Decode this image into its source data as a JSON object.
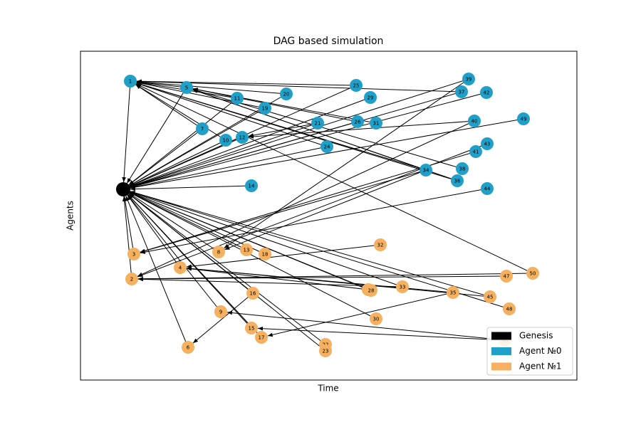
{
  "title": "DAG based simulation",
  "x_label": "Time",
  "y_label": "Agents",
  "legend": [
    {
      "name": "Genesis",
      "color": "#000000"
    },
    {
      "name": "Agent №0",
      "color": "#20a0c8"
    },
    {
      "name": "Agent №1",
      "color": "#f5b060"
    }
  ],
  "nodes": [
    {
      "group": 0
    },
    {
      "label": "1",
      "group": 1
    },
    {
      "label": "2",
      "group": 2
    },
    {
      "label": "3",
      "group": 2
    },
    {
      "label": "4",
      "group": 2
    },
    {
      "label": "5",
      "group": 1
    },
    {
      "label": "6",
      "group": 2
    },
    {
      "label": "7",
      "group": 1
    },
    {
      "label": "8",
      "group": 2
    },
    {
      "label": "9",
      "group": 2
    },
    {
      "label": "10",
      "group": 1
    },
    {
      "label": "11",
      "group": 1
    },
    {
      "label": "12",
      "group": 1
    },
    {
      "label": "13",
      "group": 2
    },
    {
      "label": "14",
      "group": 1
    },
    {
      "label": "15",
      "group": 2
    },
    {
      "label": "16",
      "group": 2
    },
    {
      "label": "17",
      "group": 2
    },
    {
      "label": "18",
      "group": 2
    },
    {
      "label": "19",
      "group": 1
    },
    {
      "label": "20",
      "group": 1
    },
    {
      "label": "21",
      "group": 1
    },
    {
      "label": "22",
      "group": 2
    },
    {
      "label": "23",
      "group": 2
    },
    {
      "label": "24",
      "group": 1
    },
    {
      "label": "25",
      "group": 1
    },
    {
      "label": "26",
      "group": 1
    },
    {
      "label": "27",
      "group": 2
    },
    {
      "label": "28",
      "group": 2
    },
    {
      "label": "29",
      "group": 1
    },
    {
      "label": "30",
      "group": 2
    },
    {
      "label": "31",
      "group": 1
    },
    {
      "label": "32",
      "group": 2
    },
    {
      "label": "33",
      "group": 2
    },
    {
      "label": "34",
      "group": 1
    },
    {
      "label": "35",
      "group": 2
    },
    {
      "label": "36",
      "group": 1
    },
    {
      "label": "37",
      "group": 1
    },
    {
      "label": "38",
      "group": 1
    },
    {
      "label": "39",
      "group": 1
    },
    {
      "label": "40",
      "group": 1
    },
    {
      "label": "41",
      "group": 1
    },
    {
      "label": "42",
      "group": 1
    },
    {
      "label": "43",
      "group": 1
    },
    {
      "label": "44",
      "group": 1
    },
    {
      "label": "45",
      "group": 2
    },
    {
      "label": "46",
      "group": 2
    },
    {
      "label": "47",
      "group": 2
    },
    {
      "label": "48",
      "group": 2
    },
    {
      "label": "49",
      "group": 1
    },
    {
      "label": "50",
      "group": 2
    }
  ]
}
